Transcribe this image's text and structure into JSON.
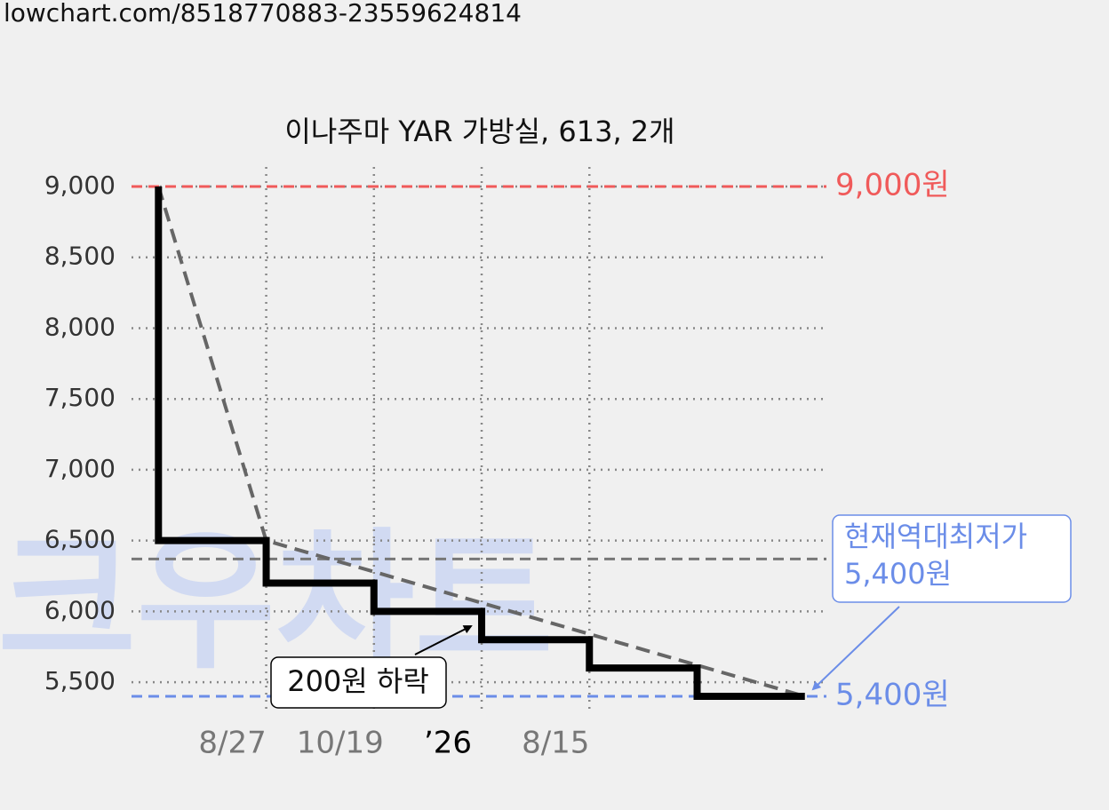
{
  "url": "lowchart.com/8518770883-23559624814",
  "chart_data": {
    "type": "step",
    "title": "이나주마 YAR 가방실, 613, 2개",
    "watermark": "크우차트",
    "x": [
      0,
      0,
      1,
      2,
      3,
      4,
      5,
      6
    ],
    "series": [
      {
        "color": "#000000",
        "values": [
          9000,
          6500,
          6200,
          6000,
          5800,
          5600,
          5400,
          5400
        ]
      }
    ],
    "trend": {
      "color": "#666666",
      "x": [
        0,
        1,
        6
      ],
      "values": [
        9000,
        6500,
        5400
      ]
    },
    "reference_lines": [
      {
        "value": 9000,
        "label": "9,000원",
        "color": "#f05a5a"
      },
      {
        "value": 5400,
        "label": "5,400원",
        "color": "#6b8de8"
      },
      {
        "value": 6370,
        "color": "#777777"
      }
    ],
    "annotations": [
      {
        "text": "200원 하락",
        "box_color": "#000000"
      },
      {
        "lines": [
          "현재역대최저가",
          "5,400원"
        ],
        "box_color": "#6b8de8"
      }
    ],
    "xlim": [
      -0.25,
      6.2
    ],
    "ylim": [
      5300,
      9000
    ],
    "yticks": [
      {
        "value": 5500,
        "label": "5,500"
      },
      {
        "value": 6000,
        "label": "6,000"
      },
      {
        "value": 6500,
        "label": "6,500"
      },
      {
        "value": 7000,
        "label": "7,000"
      },
      {
        "value": 7500,
        "label": "7,500"
      },
      {
        "value": 8000,
        "label": "8,000"
      },
      {
        "value": 8500,
        "label": "8,500"
      },
      {
        "value": 9000,
        "label": "9,000"
      }
    ],
    "xticks": [
      {
        "value": 1,
        "label": "8/27",
        "color": "#777777"
      },
      {
        "value": 2,
        "label": "10/19",
        "color": "#777777"
      },
      {
        "value": 3,
        "label": "’26",
        "color": "#000000"
      },
      {
        "value": 4,
        "label": "8/15",
        "color": "#777777"
      }
    ],
    "grid": true
  }
}
